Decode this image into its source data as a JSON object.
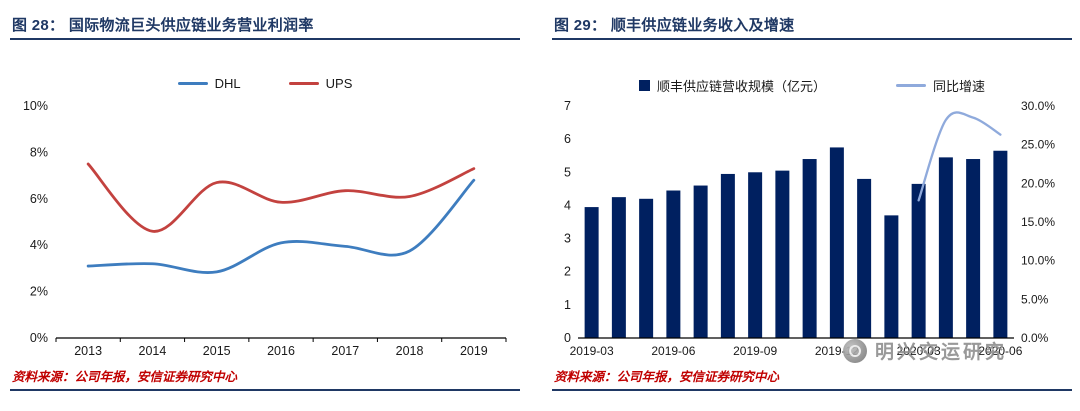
{
  "left_panel": {
    "title": "图 28： 国际物流巨头供应链业务营业利润率",
    "source": "资料来源：公司年报，安信证券研究中心"
  },
  "right_panel": {
    "title": "图 29： 顺丰供应链业务收入及增速",
    "source": "资料来源：公司年报，安信证券研究中心"
  },
  "watermark": {
    "text": "明兴交运研究"
  },
  "colors": {
    "navy_accent": "#1F3864",
    "source_red": "#C00000",
    "dhl_blue": "#3E7DBF",
    "ups_red": "#C3423F",
    "bar_navy": "#002060",
    "growth_blue": "#8FAADC",
    "axis_text": "#1a1a1a"
  },
  "chart_data": [
    {
      "type": "line",
      "title": "国际物流巨头供应链业务营业利润率",
      "x": [
        "2013",
        "2014",
        "2015",
        "2016",
        "2017",
        "2018",
        "2019"
      ],
      "series": [
        {
          "name": "DHL",
          "color": "#3E7DBF",
          "values": [
            3.1,
            3.2,
            2.85,
            4.1,
            3.95,
            3.75,
            6.8
          ]
        },
        {
          "name": "UPS",
          "color": "#C3423F",
          "values": [
            7.5,
            4.6,
            6.7,
            5.85,
            6.35,
            6.1,
            7.3
          ]
        }
      ],
      "ylim": [
        0,
        10
      ],
      "yticks": [
        "0%",
        "2%",
        "4%",
        "6%",
        "8%",
        "10%"
      ],
      "grid": false,
      "legend_position": "top"
    },
    {
      "type": "bar+line",
      "title": "顺丰供应链业务收入及增速",
      "categories": [
        "2019-03",
        "2019-04",
        "2019-05",
        "2019-06",
        "2019-07",
        "2019-08",
        "2019-09",
        "2019-10",
        "2019-11",
        "2019-12",
        "2020-01",
        "2020-02",
        "2020-03",
        "2020-04",
        "2020-05",
        "2020-06"
      ],
      "x_axis_labels": [
        "2019-03",
        "2019-06",
        "2019-09",
        "2019-12",
        "2020-03",
        "2020-06"
      ],
      "bar_series": {
        "name": "顺丰供应链营收规模（亿元）",
        "color": "#002060",
        "values": [
          3.95,
          4.25,
          4.2,
          4.45,
          4.6,
          4.95,
          5.0,
          5.05,
          5.4,
          5.75,
          4.8,
          3.7,
          4.65,
          5.45,
          5.4,
          5.65
        ]
      },
      "line_series": {
        "name": "同比增速",
        "color": "#8FAADC",
        "values": [
          null,
          null,
          null,
          null,
          null,
          null,
          null,
          null,
          null,
          null,
          null,
          null,
          17.8,
          28.2,
          28.5,
          26.3
        ]
      },
      "ylim_left": [
        0,
        7
      ],
      "yticks_left": [
        "0",
        "1",
        "2",
        "3",
        "4",
        "5",
        "6",
        "7"
      ],
      "ylim_right": [
        0,
        30
      ],
      "yticks_right": [
        "0.0%",
        "5.0%",
        "10.0%",
        "15.0%",
        "20.0%",
        "25.0%",
        "30.0%"
      ],
      "grid": false,
      "legend_position": "top"
    }
  ]
}
